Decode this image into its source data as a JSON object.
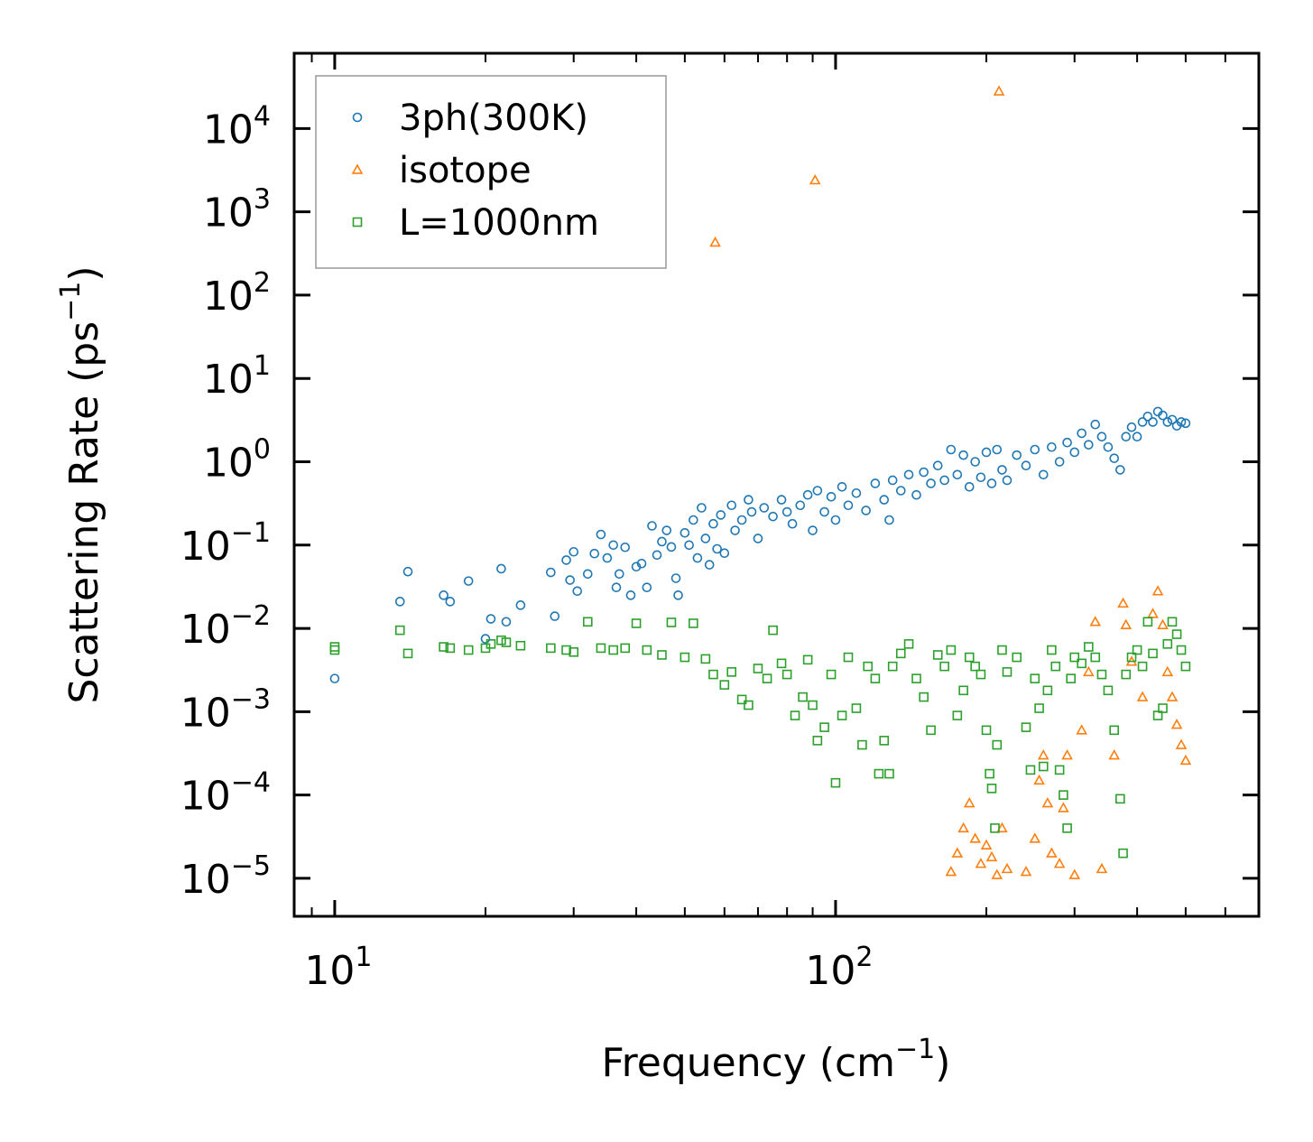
{
  "chart_data": {
    "type": "scatter",
    "title": "",
    "xlabel": "Frequency (cm",
    "xlabel_exp": "−1",
    "xlabel_close": ")",
    "ylabel": "Scattering Rate (ps",
    "ylabel_exp": "−1",
    "ylabel_close": ")",
    "xscale": "log",
    "yscale": "log",
    "xlim": [
      8.3,
      700
    ],
    "ylim": [
      3.5e-06,
      80000
    ],
    "x_ticks": [
      {
        "value": 10,
        "base": "10",
        "exp": "1"
      },
      {
        "value": 100,
        "base": "10",
        "exp": "2"
      }
    ],
    "y_ticks": [
      {
        "value": 1e-05,
        "base": "10",
        "exp": "−5"
      },
      {
        "value": 0.0001,
        "base": "10",
        "exp": "−4"
      },
      {
        "value": 0.001,
        "base": "10",
        "exp": "−3"
      },
      {
        "value": 0.01,
        "base": "10",
        "exp": "−2"
      },
      {
        "value": 0.1,
        "base": "10",
        "exp": "−1"
      },
      {
        "value": 1,
        "base": "10",
        "exp": "0"
      },
      {
        "value": 10,
        "base": "10",
        "exp": "1"
      },
      {
        "value": 100,
        "base": "10",
        "exp": "2"
      },
      {
        "value": 1000,
        "base": "10",
        "exp": "3"
      },
      {
        "value": 10000,
        "base": "10",
        "exp": "4"
      }
    ],
    "legend_position": "top-left",
    "series": [
      {
        "name": "3ph(300K)",
        "marker": "circle",
        "color": "#1f77b4",
        "points": [
          [
            10,
            0.0025
          ],
          [
            13.5,
            0.021
          ],
          [
            14,
            0.048
          ],
          [
            16.5,
            0.025
          ],
          [
            17,
            0.021
          ],
          [
            18.5,
            0.037
          ],
          [
            20,
            0.0075
          ],
          [
            20.5,
            0.013
          ],
          [
            21.5,
            0.052
          ],
          [
            22,
            0.012
          ],
          [
            23.5,
            0.019
          ],
          [
            27,
            0.047
          ],
          [
            27.5,
            0.014
          ],
          [
            29,
            0.066
          ],
          [
            29.5,
            0.038
          ],
          [
            30,
            0.083
          ],
          [
            30.5,
            0.028
          ],
          [
            32,
            0.045
          ],
          [
            33,
            0.079
          ],
          [
            34,
            0.134
          ],
          [
            35,
            0.07
          ],
          [
            36,
            0.1
          ],
          [
            36.5,
            0.031
          ],
          [
            37,
            0.045
          ],
          [
            38,
            0.094
          ],
          [
            39,
            0.025
          ],
          [
            40,
            0.055
          ],
          [
            41,
            0.06
          ],
          [
            42,
            0.031
          ],
          [
            43,
            0.17
          ],
          [
            44,
            0.076
          ],
          [
            45,
            0.11
          ],
          [
            46,
            0.15
          ],
          [
            47,
            0.095
          ],
          [
            48,
            0.04
          ],
          [
            48.5,
            0.025
          ],
          [
            50,
            0.14
          ],
          [
            51,
            0.1
          ],
          [
            52,
            0.2
          ],
          [
            53,
            0.07
          ],
          [
            54,
            0.28
          ],
          [
            55,
            0.12
          ],
          [
            56,
            0.058
          ],
          [
            57,
            0.18
          ],
          [
            58,
            0.09
          ],
          [
            59,
            0.23
          ],
          [
            60,
            0.08
          ],
          [
            62,
            0.3
          ],
          [
            63,
            0.15
          ],
          [
            65,
            0.2
          ],
          [
            67,
            0.35
          ],
          [
            68,
            0.25
          ],
          [
            70,
            0.12
          ],
          [
            72,
            0.28
          ],
          [
            75,
            0.22
          ],
          [
            78,
            0.35
          ],
          [
            80,
            0.25
          ],
          [
            82,
            0.18
          ],
          [
            85,
            0.3
          ],
          [
            88,
            0.4
          ],
          [
            90,
            0.15
          ],
          [
            92,
            0.45
          ],
          [
            95,
            0.25
          ],
          [
            98,
            0.38
          ],
          [
            100,
            0.2
          ],
          [
            103,
            0.5
          ],
          [
            106,
            0.3
          ],
          [
            110,
            0.42
          ],
          [
            115,
            0.26
          ],
          [
            120,
            0.55
          ],
          [
            125,
            0.35
          ],
          [
            128,
            0.2
          ],
          [
            130,
            0.6
          ],
          [
            135,
            0.45
          ],
          [
            140,
            0.7
          ],
          [
            145,
            0.4
          ],
          [
            150,
            0.75
          ],
          [
            155,
            0.55
          ],
          [
            160,
            0.9
          ],
          [
            165,
            0.6
          ],
          [
            170,
            1.4
          ],
          [
            175,
            0.7
          ],
          [
            180,
            1.2
          ],
          [
            185,
            0.5
          ],
          [
            190,
            1.0
          ],
          [
            195,
            0.65
          ],
          [
            200,
            1.3
          ],
          [
            205,
            0.55
          ],
          [
            210,
            1.4
          ],
          [
            215,
            0.8
          ],
          [
            220,
            0.6
          ],
          [
            230,
            1.2
          ],
          [
            240,
            0.9
          ],
          [
            250,
            1.4
          ],
          [
            260,
            0.7
          ],
          [
            270,
            1.5
          ],
          [
            280,
            1.0
          ],
          [
            290,
            1.7
          ],
          [
            300,
            1.3
          ],
          [
            310,
            2.2
          ],
          [
            320,
            1.6
          ],
          [
            330,
            2.8
          ],
          [
            340,
            2.0
          ],
          [
            350,
            1.5
          ],
          [
            360,
            1.1
          ],
          [
            370,
            0.8
          ],
          [
            380,
            2.0
          ],
          [
            390,
            2.6
          ],
          [
            400,
            2.0
          ],
          [
            410,
            3.0
          ],
          [
            420,
            3.5
          ],
          [
            430,
            3.0
          ],
          [
            440,
            4.0
          ],
          [
            450,
            3.6
          ],
          [
            460,
            3.0
          ],
          [
            470,
            3.2
          ],
          [
            480,
            2.7
          ],
          [
            490,
            3.0
          ],
          [
            500,
            2.9
          ]
        ]
      },
      {
        "name": "isotope",
        "marker": "triangle",
        "color": "#ff7f0e",
        "points": [
          [
            57.5,
            430
          ],
          [
            91,
            2400
          ],
          [
            212,
            28000
          ],
          [
            170,
            1.2e-05
          ],
          [
            175,
            2e-05
          ],
          [
            180,
            4e-05
          ],
          [
            185,
            8e-05
          ],
          [
            190,
            3e-05
          ],
          [
            195,
            1.5e-05
          ],
          [
            200,
            2.5e-05
          ],
          [
            205,
            1.8e-05
          ],
          [
            210,
            1.1e-05
          ],
          [
            215,
            4e-05
          ],
          [
            220,
            1.3e-05
          ],
          [
            240,
            1.2e-05
          ],
          [
            250,
            3e-05
          ],
          [
            255,
            0.00015
          ],
          [
            260,
            0.0003
          ],
          [
            265,
            8e-05
          ],
          [
            270,
            2e-05
          ],
          [
            280,
            1.5e-05
          ],
          [
            285,
            7e-05
          ],
          [
            290,
            0.0003
          ],
          [
            300,
            1.1e-05
          ],
          [
            310,
            0.0006
          ],
          [
            320,
            0.003
          ],
          [
            330,
            0.012
          ],
          [
            340,
            1.3e-05
          ],
          [
            360,
            0.0003
          ],
          [
            375,
            0.02
          ],
          [
            380,
            0.011
          ],
          [
            390,
            0.004
          ],
          [
            410,
            0.0015
          ],
          [
            430,
            0.015
          ],
          [
            440,
            0.028
          ],
          [
            450,
            0.011
          ],
          [
            460,
            0.003
          ],
          [
            470,
            0.0015
          ],
          [
            480,
            0.0007
          ],
          [
            490,
            0.0004
          ],
          [
            500,
            0.00026
          ]
        ]
      },
      {
        "name": "L=1000nm",
        "marker": "square",
        "color": "#2ca02c",
        "points": [
          [
            10,
            0.006
          ],
          [
            10,
            0.0055
          ],
          [
            13.5,
            0.0095
          ],
          [
            14,
            0.005
          ],
          [
            16.5,
            0.006
          ],
          [
            17,
            0.0058
          ],
          [
            18.5,
            0.0055
          ],
          [
            20,
            0.0058
          ],
          [
            20.5,
            0.0065
          ],
          [
            21.5,
            0.0072
          ],
          [
            22,
            0.0068
          ],
          [
            23.5,
            0.0062
          ],
          [
            27,
            0.0058
          ],
          [
            29,
            0.0055
          ],
          [
            30,
            0.0052
          ],
          [
            32,
            0.012
          ],
          [
            34,
            0.0058
          ],
          [
            36,
            0.0055
          ],
          [
            38,
            0.0058
          ],
          [
            40,
            0.0115
          ],
          [
            42,
            0.0055
          ],
          [
            45,
            0.0048
          ],
          [
            47,
            0.0118
          ],
          [
            50,
            0.0045
          ],
          [
            52,
            0.0115
          ],
          [
            55,
            0.0043
          ],
          [
            57,
            0.0028
          ],
          [
            60,
            0.0021
          ],
          [
            62,
            0.003
          ],
          [
            65,
            0.0014
          ],
          [
            67,
            0.0012
          ],
          [
            70,
            0.0033
          ],
          [
            73,
            0.0025
          ],
          [
            75,
            0.0095
          ],
          [
            78,
            0.0038
          ],
          [
            80,
            0.0028
          ],
          [
            83,
            0.0009
          ],
          [
            86,
            0.0015
          ],
          [
            88,
            0.0042
          ],
          [
            90,
            0.0012
          ],
          [
            92,
            0.00045
          ],
          [
            95,
            0.00065
          ],
          [
            98,
            0.0028
          ],
          [
            100,
            0.00014
          ],
          [
            103,
            0.0009
          ],
          [
            106,
            0.0045
          ],
          [
            110,
            0.0011
          ],
          [
            113,
            0.0004
          ],
          [
            116,
            0.0035
          ],
          [
            120,
            0.0025
          ],
          [
            122,
            0.00018
          ],
          [
            125,
            0.00045
          ],
          [
            128,
            0.00018
          ],
          [
            130,
            0.0035
          ],
          [
            135,
            0.005
          ],
          [
            140,
            0.0065
          ],
          [
            145,
            0.0025
          ],
          [
            150,
            0.0015
          ],
          [
            155,
            0.0006
          ],
          [
            160,
            0.0048
          ],
          [
            165,
            0.0035
          ],
          [
            170,
            0.0055
          ],
          [
            175,
            0.0009
          ],
          [
            180,
            0.0018
          ],
          [
            185,
            0.0045
          ],
          [
            190,
            0.0035
          ],
          [
            195,
            0.0028
          ],
          [
            200,
            0.0006
          ],
          [
            203,
            0.00018
          ],
          [
            205,
            0.00012
          ],
          [
            208,
            4e-05
          ],
          [
            210,
            0.0004
          ],
          [
            215,
            0.0055
          ],
          [
            220,
            0.003
          ],
          [
            230,
            0.0045
          ],
          [
            240,
            0.00065
          ],
          [
            245,
            0.0002
          ],
          [
            250,
            0.0025
          ],
          [
            255,
            0.0011
          ],
          [
            260,
            0.00022
          ],
          [
            265,
            0.0018
          ],
          [
            270,
            0.0055
          ],
          [
            275,
            0.0035
          ],
          [
            280,
            0.0002
          ],
          [
            285,
            0.0001
          ],
          [
            290,
            4e-05
          ],
          [
            295,
            0.0025
          ],
          [
            300,
            0.0045
          ],
          [
            310,
            0.0038
          ],
          [
            320,
            0.006
          ],
          [
            330,
            0.0045
          ],
          [
            340,
            0.0028
          ],
          [
            350,
            0.0018
          ],
          [
            360,
            0.0006
          ],
          [
            370,
            9e-05
          ],
          [
            375,
            2e-05
          ],
          [
            380,
            0.0028
          ],
          [
            390,
            0.0045
          ],
          [
            400,
            0.0055
          ],
          [
            410,
            0.0035
          ],
          [
            420,
            0.012
          ],
          [
            430,
            0.005
          ],
          [
            440,
            0.0009
          ],
          [
            450,
            0.0011
          ],
          [
            460,
            0.0065
          ],
          [
            470,
            0.012
          ],
          [
            480,
            0.0085
          ],
          [
            490,
            0.0055
          ],
          [
            500,
            0.0035
          ]
        ]
      }
    ]
  }
}
